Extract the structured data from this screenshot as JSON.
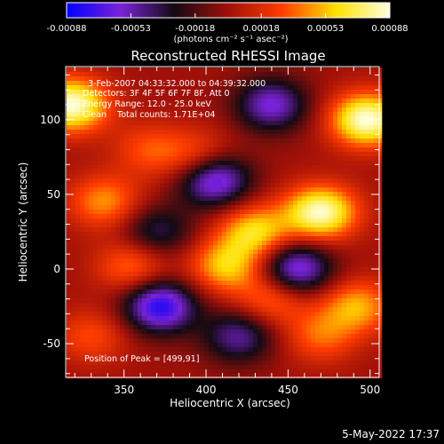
{
  "chart_data": {
    "type": "heatmap",
    "title": "Reconstructed RHESSI Image",
    "xlabel": "Heliocentric X (arcsec)",
    "ylabel": "Heliocentric Y (arcsec)",
    "xlim": [
      315,
      505
    ],
    "ylim": [
      -72,
      135
    ],
    "x_ticks": [
      350,
      400,
      450,
      500
    ],
    "y_ticks": [
      -50,
      0,
      50,
      100
    ],
    "colorbar": {
      "range": [
        -0.00088,
        0.00088
      ],
      "ticks": [
        "-0.00088",
        "-0.00053",
        "-0.00018",
        "0.00018",
        "0.00053",
        "0.00088"
      ],
      "units_label": "(photons cm⁻² s⁻¹ asec⁻²)",
      "colors": [
        "#0000ff",
        "#7a22d8",
        "#140a14",
        "#a01008",
        "#ff3c00",
        "#ffe000",
        "#ffffe0"
      ]
    },
    "annotations": {
      "time_range": "3-Feb-2007 04:33:32.000 to 04:39:32.000",
      "detectors": "Detectors: 3F 4F 5F 6F 7F 8F, Att 0",
      "energy_range": "Energy Range: 12.0 - 25.0 keV",
      "method_counts": "Clean    Total counts: 1.71E+04",
      "peak_position": "Position of Peak = [499,91]"
    },
    "sources": [
      {
        "x": 318,
        "y": 110,
        "value": 0.00088
      },
      {
        "x": 498,
        "y": 100,
        "value": 0.00088
      },
      {
        "x": 470,
        "y": 38,
        "value": 0.00085
      },
      {
        "x": 430,
        "y": 25,
        "value": 0.0006
      },
      {
        "x": 338,
        "y": 45,
        "value": 0.00045
      },
      {
        "x": 355,
        "y": 2,
        "value": 0.0004
      },
      {
        "x": 412,
        "y": 2,
        "value": 0.00055
      },
      {
        "x": 440,
        "y": -20,
        "value": 0.0004
      },
      {
        "x": 492,
        "y": -25,
        "value": 0.0005
      },
      {
        "x": 470,
        "y": -45,
        "value": 0.00035
      },
      {
        "x": 395,
        "y": 75,
        "value": 0.00035
      },
      {
        "x": 365,
        "y": 80,
        "value": 0.0003
      },
      {
        "x": 330,
        "y": -45,
        "value": 0.0003
      },
      {
        "x": 405,
        "y": 60,
        "value": -0.00075
      },
      {
        "x": 372,
        "y": -25,
        "value": -0.0008
      },
      {
        "x": 455,
        "y": 0,
        "value": -0.0007
      },
      {
        "x": 440,
        "y": 110,
        "value": -0.0006
      },
      {
        "x": 370,
        "y": 25,
        "value": -0.0004
      },
      {
        "x": 420,
        "y": -45,
        "value": -0.0005
      }
    ]
  },
  "footer": {
    "timestamp": "5-May-2022 17:37"
  }
}
